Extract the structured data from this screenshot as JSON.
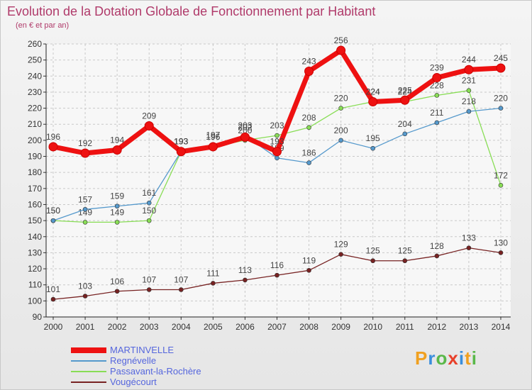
{
  "chart_data": {
    "type": "line",
    "title": "Evolution de la Dotation Globale de Fonctionnement par Habitant",
    "subtitle": "(en € et par an)",
    "x": [
      "2000",
      "2001",
      "2002",
      "2003",
      "2004",
      "2005",
      "2006",
      "2007",
      "2008",
      "2009",
      "2010",
      "2011",
      "2012",
      "2013",
      "2014"
    ],
    "ylim": [
      90,
      260
    ],
    "yticks": [
      90,
      100,
      110,
      120,
      130,
      140,
      150,
      160,
      170,
      180,
      190,
      200,
      210,
      220,
      230,
      240,
      250,
      260
    ],
    "grid": true,
    "legend_position": "bottom-left",
    "series": [
      {
        "name": "MARTINVELLE",
        "color": "#ee1111",
        "values": [
          196,
          192,
          194,
          209,
          193,
          196,
          202,
          193,
          243,
          256,
          224,
          225,
          239,
          244,
          245
        ]
      },
      {
        "name": "Regnévelle",
        "color": "#5599cc",
        "values": [
          150,
          157,
          159,
          161,
          193,
          197,
          203,
          189,
          186,
          200,
          195,
          204,
          211,
          218,
          220
        ]
      },
      {
        "name": "Passavant-la-Rochère",
        "color": "#88dd55",
        "values": [
          150,
          149,
          149,
          150,
          193,
          196,
          200,
          203,
          208,
          220,
          224,
          224,
          228,
          231,
          172
        ]
      },
      {
        "name": "Vougécourt",
        "color": "#772222",
        "values": [
          101,
          103,
          106,
          107,
          107,
          111,
          113,
          116,
          119,
          129,
          125,
          125,
          128,
          133,
          130
        ]
      }
    ]
  },
  "logo": {
    "text": "Proxiti"
  }
}
